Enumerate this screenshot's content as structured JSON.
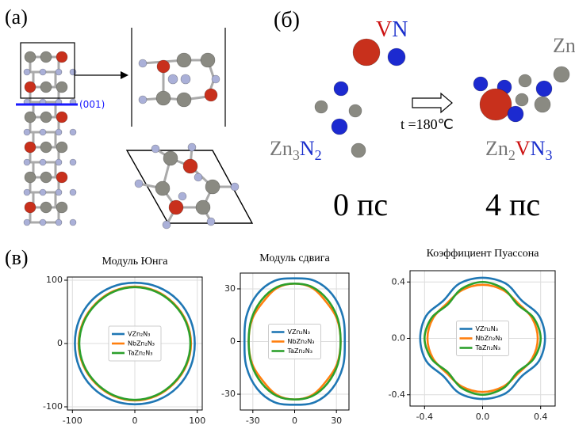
{
  "panel_a": {
    "label": "(a)",
    "plane": "(001)"
  },
  "panel_b": {
    "label": "(б)",
    "vn": [
      "V",
      "N"
    ],
    "zn3n2": [
      "Zn",
      "3",
      "N",
      "2"
    ],
    "condition": "t =180℃",
    "product": [
      "Zn",
      "2",
      "V",
      "N",
      "3"
    ],
    "time_start": "0 пс",
    "time_end": "4 пс",
    "cropped": "Zn"
  },
  "panel_c": {
    "label": "(в)"
  },
  "chart_data": [
    {
      "type": "curve",
      "title": "Модуль Юнга",
      "grid": true,
      "legend": "center",
      "xlim": [
        -108,
        108
      ],
      "ylim": [
        -105,
        105
      ],
      "xticks": [
        -100,
        0,
        100
      ],
      "yticks": [
        -100,
        0,
        100
      ],
      "series": [
        {
          "name": "VZn₂N₃",
          "color": "#1f77b4",
          "x": [
            96,
            89.2,
            68.6,
            37,
            0,
            -37,
            -68.6,
            -89.2,
            -96,
            -89.2,
            -68.6,
            -37,
            0,
            37,
            68.6,
            89.2
          ],
          "values": [
            0,
            37,
            68.6,
            89.2,
            96,
            89.2,
            68.6,
            37,
            0,
            -37,
            -68.6,
            -89.2,
            -96,
            -89.2,
            -68.6,
            -37
          ]
        },
        {
          "name": "NbZn₂N₃",
          "color": "#ff7f0e",
          "x": [
            90,
            82.7,
            62.9,
            34.3,
            0,
            -34.3,
            -62.9,
            -82.7,
            -90,
            -82.7,
            -62.9,
            -34.3,
            0,
            34.3,
            62.9,
            82.7
          ],
          "values": [
            0,
            34.3,
            62.9,
            82.7,
            90,
            82.7,
            62.9,
            34.3,
            0,
            -34.3,
            -62.9,
            -82.7,
            -90,
            -82.7,
            -62.9,
            -34.3
          ]
        },
        {
          "name": "TaZn₂N₃",
          "color": "#2ca02c",
          "x": [
            89,
            81.8,
            62.2,
            33.9,
            0,
            -33.9,
            -62.2,
            -81.8,
            -89,
            -81.8,
            -62.2,
            -33.9,
            0,
            33.9,
            62.2,
            81.8
          ],
          "values": [
            0,
            33.9,
            62.2,
            81.8,
            89,
            81.8,
            62.2,
            33.9,
            0,
            -33.9,
            -62.2,
            -81.8,
            -89,
            -81.8,
            -62.2,
            -33.9
          ]
        }
      ]
    },
    {
      "type": "curve",
      "title": "Модуль сдвига",
      "grid": true,
      "legend": "center",
      "xlim": [
        -39,
        39
      ],
      "ylim": [
        -39,
        39
      ],
      "xticks": [
        -30,
        0,
        30
      ],
      "yticks": [
        -30,
        0,
        30
      ],
      "series": [
        {
          "name": "VZn₂N₃",
          "color": "#1f77b4",
          "x": [
            36,
            34.6,
            26.9,
            14.4,
            0,
            -14.4,
            -26.9,
            -34.6,
            -36,
            -34.6,
            -26.9,
            -14.4,
            0,
            14.4,
            26.9,
            34.6
          ],
          "values": [
            0,
            14.4,
            26.9,
            34.6,
            36,
            34.6,
            26.9,
            14.4,
            0,
            -14.4,
            -26.9,
            -34.6,
            -36,
            -34.6,
            -26.9,
            -14.4
          ]
        },
        {
          "name": "NbZn₂N₃",
          "color": "#ff7f0e",
          "x": [
            33,
            30.5,
            22.6,
            12.6,
            0,
            -12.6,
            -22.6,
            -30.5,
            -33,
            -30.5,
            -22.6,
            -12.6,
            0,
            12.6,
            22.6,
            30.5
          ],
          "values": [
            0,
            12.6,
            22.6,
            30.5,
            33,
            30.5,
            22.6,
            12.6,
            0,
            -12.6,
            -22.6,
            -30.5,
            -33,
            -30.5,
            -22.6,
            -12.6
          ]
        },
        {
          "name": "TaZn₂N₃",
          "color": "#2ca02c",
          "x": [
            33,
            31,
            23.7,
            12.8,
            0,
            -12.8,
            -23.7,
            -31,
            -33,
            -31,
            -23.7,
            -12.8,
            0,
            12.8,
            23.7,
            31
          ],
          "values": [
            0,
            12.8,
            23.7,
            31,
            33,
            31,
            23.7,
            12.8,
            0,
            -12.8,
            -23.7,
            -31,
            -33,
            -31,
            -23.7,
            -12.8
          ]
        }
      ]
    },
    {
      "type": "curve",
      "title": "Коэффициент Пуассона",
      "grid": true,
      "legend": "center",
      "xlim": [
        -0.5,
        0.5
      ],
      "ylim": [
        -0.48,
        0.48
      ],
      "xticks": [
        -0.4,
        {
          "value": 0,
          "label": "0.0"
        },
        0.4
      ],
      "yticks": [
        -0.4,
        {
          "value": 0,
          "label": "0.0"
        },
        0.4
      ],
      "series": [
        {
          "name": "VZn₂N₃",
          "color": "#1f77b4",
          "x": [
            0.43,
            0.388,
            0.269,
            0.161,
            0,
            -0.161,
            -0.269,
            -0.388,
            -0.43,
            -0.388,
            -0.269,
            -0.161,
            0,
            0.161,
            0.269,
            0.388
          ],
          "values": [
            0,
            0.161,
            0.269,
            0.388,
            0.43,
            0.388,
            0.269,
            0.161,
            0,
            -0.161,
            -0.269,
            -0.388,
            -0.43,
            -0.388,
            -0.269,
            -0.161
          ]
        },
        {
          "name": "NbZn₂N₃",
          "color": "#ff7f0e",
          "x": [
            0.38,
            0.342,
            0.247,
            0.142,
            0,
            -0.142,
            -0.247,
            -0.342,
            -0.38,
            -0.342,
            -0.247,
            -0.142,
            0,
            0.142,
            0.247,
            0.342
          ],
          "values": [
            0,
            0.142,
            0.247,
            0.342,
            0.38,
            0.342,
            0.247,
            0.142,
            0,
            -0.142,
            -0.247,
            -0.342,
            -0.38,
            -0.342,
            -0.247,
            -0.142
          ]
        },
        {
          "name": "TaZn₂N₃",
          "color": "#2ca02c",
          "x": [
            0.4,
            0.351,
            0.24,
            0.146,
            0,
            -0.146,
            -0.24,
            -0.351,
            -0.4,
            -0.351,
            -0.24,
            -0.146,
            0,
            0.146,
            0.24,
            0.351
          ],
          "values": [
            0,
            0.146,
            0.24,
            0.351,
            0.4,
            0.351,
            0.24,
            0.146,
            0,
            -0.146,
            -0.24,
            -0.351,
            -0.4,
            -0.351,
            -0.24,
            -0.146
          ]
        }
      ]
    }
  ]
}
